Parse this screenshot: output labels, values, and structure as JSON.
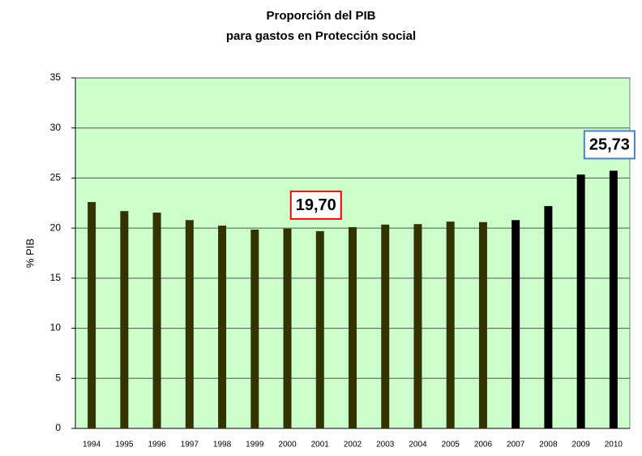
{
  "chart_data": {
    "type": "bar",
    "title": [
      "Proporción del PIB",
      "para gastos en Protección social"
    ],
    "ylabel": "% PIB",
    "categories": [
      "1994",
      "1995",
      "1996",
      "1997",
      "1998",
      "1999",
      "2000",
      "2001",
      "2002",
      "2003",
      "2004",
      "2005",
      "2006",
      "2007",
      "2008",
      "2009",
      "2010"
    ],
    "values": [
      22.6,
      21.7,
      21.55,
      20.8,
      20.25,
      19.85,
      19.95,
      19.7,
      20.1,
      20.35,
      20.4,
      20.65,
      20.6,
      20.8,
      22.2,
      25.35,
      25.73
    ],
    "colors": [
      "#333300",
      "#333300",
      "#333300",
      "#333300",
      "#333300",
      "#333300",
      "#333300",
      "#333300",
      "#333300",
      "#333300",
      "#333300",
      "#333300",
      "#333300",
      "#000000",
      "#000000",
      "#000000",
      "#000000"
    ],
    "value_labels": [
      null,
      null,
      null,
      null,
      null,
      null,
      null,
      "19,70",
      null,
      null,
      null,
      null,
      null,
      null,
      null,
      null,
      "25,73"
    ],
    "value_label_borders": [
      null,
      null,
      null,
      null,
      null,
      null,
      null,
      "#ff0000",
      null,
      null,
      null,
      null,
      null,
      null,
      null,
      null,
      "#4f81bd"
    ],
    "ylim": [
      0,
      35
    ],
    "yticks": [
      0,
      5,
      10,
      15,
      20,
      25,
      30,
      35
    ],
    "grid": true,
    "background": "#ccffcc"
  }
}
